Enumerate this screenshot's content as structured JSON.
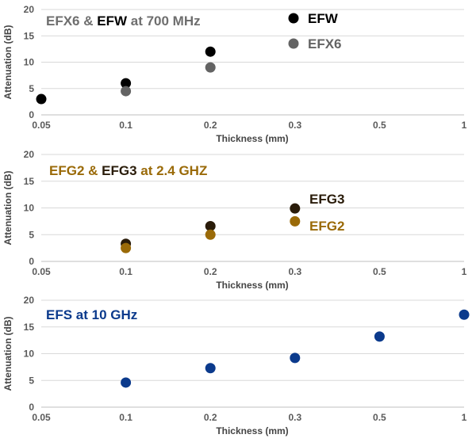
{
  "chart_data": [
    {
      "type": "scatter",
      "title_parts": [
        {
          "text": "EFX6 & ",
          "color": "#6e6e6e"
        },
        {
          "text": "EFW",
          "color": "#000000"
        },
        {
          "text": " at 700 MHz",
          "color": "#6e6e6e"
        }
      ],
      "xlabel": "Thickness (mm)",
      "ylabel": "Attenuation (dB)",
      "categories": [
        "0.05",
        "0.1",
        "0.2",
        "0.3",
        "0.5",
        "1"
      ],
      "ylim": [
        0,
        20
      ],
      "yticks": [
        0,
        5,
        10,
        15,
        20
      ],
      "grid": true,
      "series": [
        {
          "name": "EFW",
          "color": "#000000",
          "x": [
            "0.05",
            "0.1",
            "0.2"
          ],
          "values": [
            3,
            6,
            12
          ]
        },
        {
          "name": "EFX6",
          "color": "#636363",
          "x": [
            "0.1",
            "0.2"
          ],
          "values": [
            4.5,
            9
          ]
        }
      ],
      "legend": "top-center, marker + label"
    },
    {
      "type": "scatter",
      "title_parts": [
        {
          "text": "EFG2 & ",
          "color": "#9a6a08"
        },
        {
          "text": "EFG3",
          "color": "#2a1c0a"
        },
        {
          "text": " at 2.4 GHZ",
          "color": "#9a6a08"
        }
      ],
      "xlabel": "Thickness (mm)",
      "ylabel": "Attenuation (dB)",
      "categories": [
        "0.05",
        "0.1",
        "0.2",
        "0.3",
        "0.5",
        "1"
      ],
      "ylim": [
        0,
        20
      ],
      "yticks": [
        0,
        5,
        10,
        15,
        20
      ],
      "grid": true,
      "series": [
        {
          "name": "EFG3",
          "color": "#2a1c0a",
          "x": [
            "0.1",
            "0.2",
            "0.3"
          ],
          "values": [
            3.3,
            6.6,
            9.9
          ]
        },
        {
          "name": "EFG2",
          "color": "#9a6a08",
          "x": [
            "0.1",
            "0.2",
            "0.3"
          ],
          "values": [
            2.5,
            5,
            7.5
          ]
        }
      ],
      "legend": "labels beside last points"
    },
    {
      "type": "scatter",
      "title_parts": [
        {
          "text": "EFS at 10 GHz",
          "color": "#0b3a8c"
        }
      ],
      "xlabel": "Thickness (mm)",
      "ylabel": "Attenuation (dB)",
      "categories": [
        "0.05",
        "0.1",
        "0.2",
        "0.3",
        "0.5",
        "1"
      ],
      "ylim": [
        0,
        20
      ],
      "yticks": [
        0,
        5,
        10,
        15,
        20
      ],
      "grid": true,
      "series": [
        {
          "name": "EFS",
          "color": "#0b3a8c",
          "x": [
            "0.1",
            "0.2",
            "0.3",
            "0.5",
            "1"
          ],
          "values": [
            4.6,
            7.3,
            9.2,
            13.2,
            17.3
          ]
        }
      ]
    }
  ]
}
